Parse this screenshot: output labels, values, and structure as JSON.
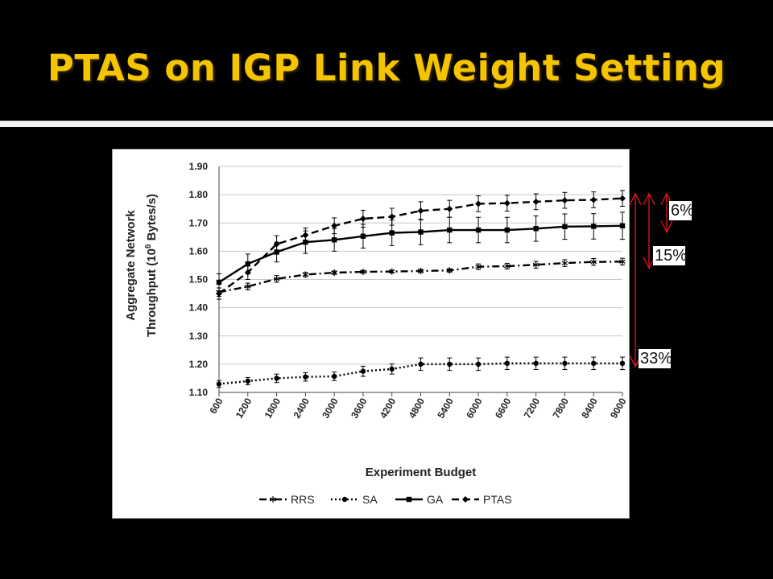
{
  "slide": {
    "title": "PTAS on IGP Link Weight Setting"
  },
  "colors": {
    "title": "#f5c400",
    "background": "#000000",
    "chart_background": "#ffffff",
    "series": "#000000",
    "annotation_arrow": "#e0141e"
  },
  "annotations": [
    {
      "label": "6%",
      "from_series": "PTAS",
      "to_series": "GA"
    },
    {
      "label": "15%",
      "from_series": "PTAS",
      "to_series": "RRS"
    },
    {
      "label": "33%",
      "from_series": "PTAS",
      "to_series": "SA"
    }
  ],
  "chart_data": {
    "type": "line",
    "title": "",
    "xlabel": "Experiment Budget",
    "ylabel_line1": "Aggregate Network",
    "ylabel_line2_prefix": "Throughput (10",
    "ylabel_line2_sup": "6",
    "ylabel_line2_suffix": " Bytes/s)",
    "ylim": [
      1.1,
      1.9
    ],
    "yticks": [
      "1.10",
      "1.20",
      "1.30",
      "1.40",
      "1.50",
      "1.60",
      "1.70",
      "1.80",
      "1.90"
    ],
    "grid": "horizontal",
    "legend_position": "bottom",
    "categories": [
      "600",
      "1200",
      "1800",
      "2400",
      "3000",
      "3600",
      "4200",
      "4800",
      "5400",
      "6000",
      "6600",
      "7200",
      "7800",
      "8400",
      "9000"
    ],
    "series": [
      {
        "name": "RRS",
        "line_style": "dash-dot",
        "marker": "asterisk",
        "values": [
          1.455,
          1.475,
          1.502,
          1.517,
          1.524,
          1.527,
          1.528,
          1.53,
          1.532,
          1.545,
          1.547,
          1.552,
          1.558,
          1.562,
          1.563
        ],
        "error": [
          0.015,
          0.012,
          0.012,
          0.008,
          0.006,
          0.005,
          0.005,
          0.006,
          0.006,
          0.01,
          0.01,
          0.012,
          0.012,
          0.012,
          0.012
        ]
      },
      {
        "name": "SA",
        "line_style": "dotted",
        "marker": "circle",
        "values": [
          1.13,
          1.14,
          1.15,
          1.155,
          1.157,
          1.175,
          1.183,
          1.2,
          1.2,
          1.2,
          1.203,
          1.203,
          1.203,
          1.203,
          1.203
        ],
        "error": [
          0.012,
          0.013,
          0.015,
          0.015,
          0.015,
          0.018,
          0.018,
          0.022,
          0.022,
          0.022,
          0.022,
          0.022,
          0.022,
          0.022,
          0.022
        ]
      },
      {
        "name": "GA",
        "line_style": "solid",
        "marker": "square",
        "values": [
          1.49,
          1.555,
          1.597,
          1.632,
          1.64,
          1.653,
          1.665,
          1.668,
          1.675,
          1.675,
          1.675,
          1.68,
          1.687,
          1.688,
          1.69
        ],
        "error": [
          0.03,
          0.035,
          0.035,
          0.04,
          0.04,
          0.042,
          0.045,
          0.045,
          0.045,
          0.045,
          0.045,
          0.045,
          0.045,
          0.045,
          0.048
        ]
      },
      {
        "name": "PTAS",
        "line_style": "dashed",
        "marker": "diamond",
        "values": [
          1.45,
          1.525,
          1.625,
          1.657,
          1.69,
          1.715,
          1.722,
          1.743,
          1.75,
          1.768,
          1.77,
          1.775,
          1.78,
          1.782,
          1.787
        ],
        "error": [
          0.02,
          0.025,
          0.03,
          0.025,
          0.028,
          0.03,
          0.03,
          0.032,
          0.03,
          0.028,
          0.028,
          0.028,
          0.028,
          0.028,
          0.028
        ]
      }
    ]
  }
}
